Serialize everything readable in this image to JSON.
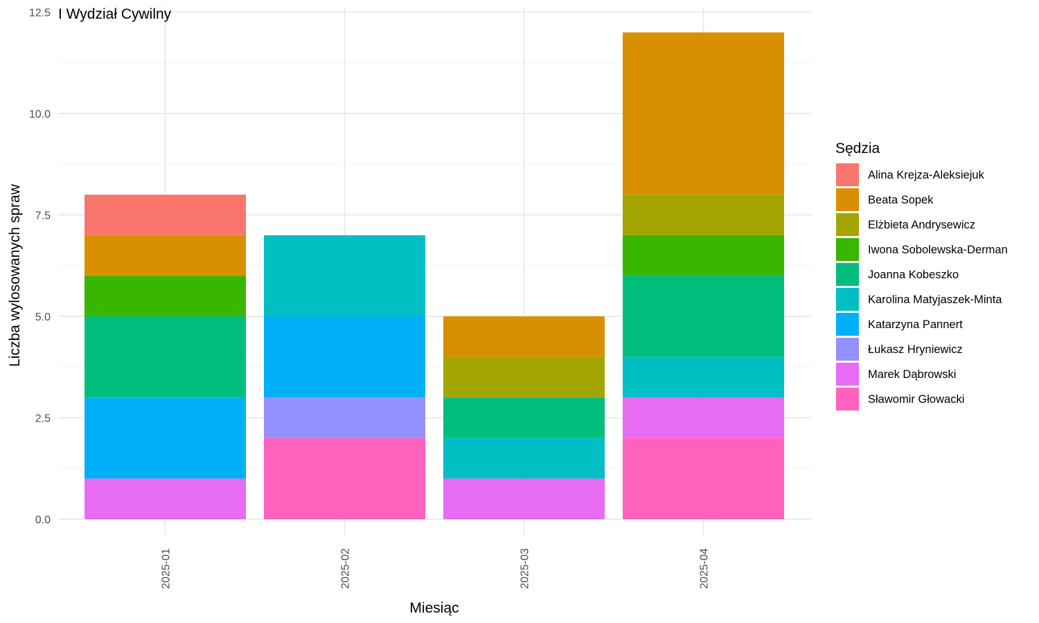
{
  "chart_data": {
    "type": "bar",
    "stacked": true,
    "title": "I Wydział Cywilny",
    "xlabel": "Miesiąc",
    "ylabel": "Liczba wylosowanych spraw",
    "ylim": [
      0,
      12.5
    ],
    "yticks": [
      "0.0",
      "2.5",
      "5.0",
      "7.5",
      "10.0",
      "12.5"
    ],
    "grid": true,
    "legend_title": "Sędzia",
    "legend_position": "right",
    "categories": [
      "2025-01",
      "2025-02",
      "2025-03",
      "2025-04"
    ],
    "series": [
      {
        "name": "Alina Krejza-Aleksiejuk",
        "color": "#F8766D",
        "values": [
          1,
          0,
          0,
          0
        ]
      },
      {
        "name": "Beata Sopek",
        "color": "#D89000",
        "values": [
          1,
          0,
          1,
          4
        ]
      },
      {
        "name": "Elżbieta Andrysewicz",
        "color": "#A3A500",
        "values": [
          0,
          0,
          1,
          1
        ]
      },
      {
        "name": "Iwona Sobolewska-Derman",
        "color": "#39B600",
        "values": [
          1,
          0,
          0,
          1
        ]
      },
      {
        "name": "Joanna Kobeszko",
        "color": "#00BF7D",
        "values": [
          2,
          0,
          1,
          2
        ]
      },
      {
        "name": "Karolina Matyjaszek-Minta",
        "color": "#00BFC4",
        "values": [
          0,
          2,
          1,
          1
        ]
      },
      {
        "name": "Katarzyna Pannert",
        "color": "#00B0F6",
        "values": [
          2,
          2,
          0,
          0
        ]
      },
      {
        "name": "Łukasz Hryniewicz",
        "color": "#9590FF",
        "values": [
          0,
          1,
          0,
          0
        ]
      },
      {
        "name": "Marek Dąbrowski",
        "color": "#E76BF3",
        "values": [
          1,
          0,
          1,
          1
        ]
      },
      {
        "name": "Sławomir Głowacki",
        "color": "#FF62BC",
        "values": [
          0,
          2,
          0,
          2
        ]
      }
    ]
  }
}
